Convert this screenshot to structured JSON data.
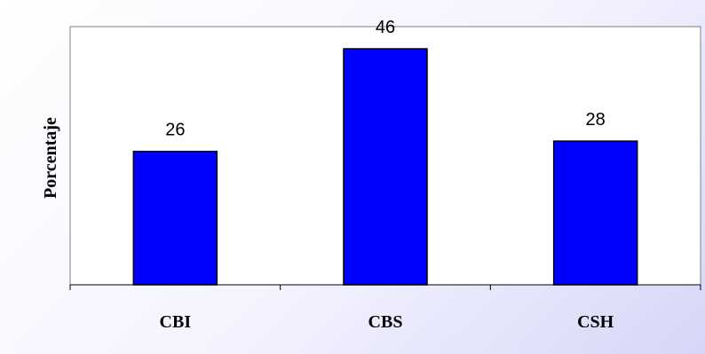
{
  "chart_data": {
    "type": "bar",
    "categories": [
      "CBI",
      "CBS",
      "CSH"
    ],
    "values": [
      26,
      46,
      28
    ],
    "data_labels": [
      "26",
      "46",
      "28"
    ],
    "title": "",
    "xlabel": "",
    "ylabel": "Porcentaje",
    "ylim": [
      0,
      46
    ],
    "grid": false,
    "legend": "none",
    "colors": {
      "bar_fill": "#0000ff",
      "bar_stroke": "#000000",
      "plot_bg": "#ffffff",
      "frame": "#808080"
    }
  }
}
